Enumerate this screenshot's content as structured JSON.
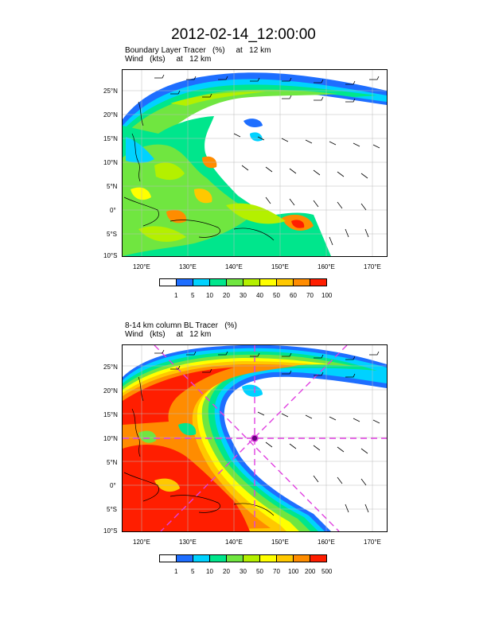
{
  "title": "2012-02-14_12:00:00",
  "panels": [
    {
      "title_lines": [
        "Boundary Layer Tracer   (%)     at   12 km",
        "Wind   (kts)     at   12 km"
      ],
      "lat_labels": [
        "25°N",
        "20°N",
        "15°N",
        "10°N",
        "5°N",
        "0°",
        "5°S",
        "10°S"
      ],
      "lon_labels": [
        "120°E",
        "130°E",
        "140°E",
        "150°E",
        "160°E",
        "170°E"
      ],
      "legend_labels": [
        "1",
        "5",
        "10",
        "20",
        "30",
        "40",
        "50",
        "60",
        "70",
        "100"
      ],
      "legend_colors": [
        "#ffffff",
        "#1e6eff",
        "#00d2ff",
        "#00e68c",
        "#70e640",
        "#b4f000",
        "#ffff00",
        "#ffc800",
        "#ff8c00",
        "#ff1e00"
      ]
    },
    {
      "title_lines": [
        "8-14 km column BL Tracer   (%)",
        "Wind   (kts)     at   12 km"
      ],
      "lat_labels": [
        "25°N",
        "20°N",
        "15°N",
        "10°N",
        "5°N",
        "0°",
        "5°S",
        "10°S"
      ],
      "lon_labels": [
        "120°E",
        "130°E",
        "140°E",
        "150°E",
        "160°E",
        "170°E"
      ],
      "legend_labels": [
        "1",
        "5",
        "10",
        "20",
        "30",
        "50",
        "70",
        "100",
        "200",
        "500"
      ],
      "legend_colors": [
        "#ffffff",
        "#1e6eff",
        "#00d2ff",
        "#00e68c",
        "#70e640",
        "#b4f000",
        "#ffff00",
        "#ffc800",
        "#ff8c00",
        "#ff1e00"
      ],
      "marker": {
        "lon": 145,
        "lat": 10,
        "color": "#e040e0"
      }
    }
  ]
}
